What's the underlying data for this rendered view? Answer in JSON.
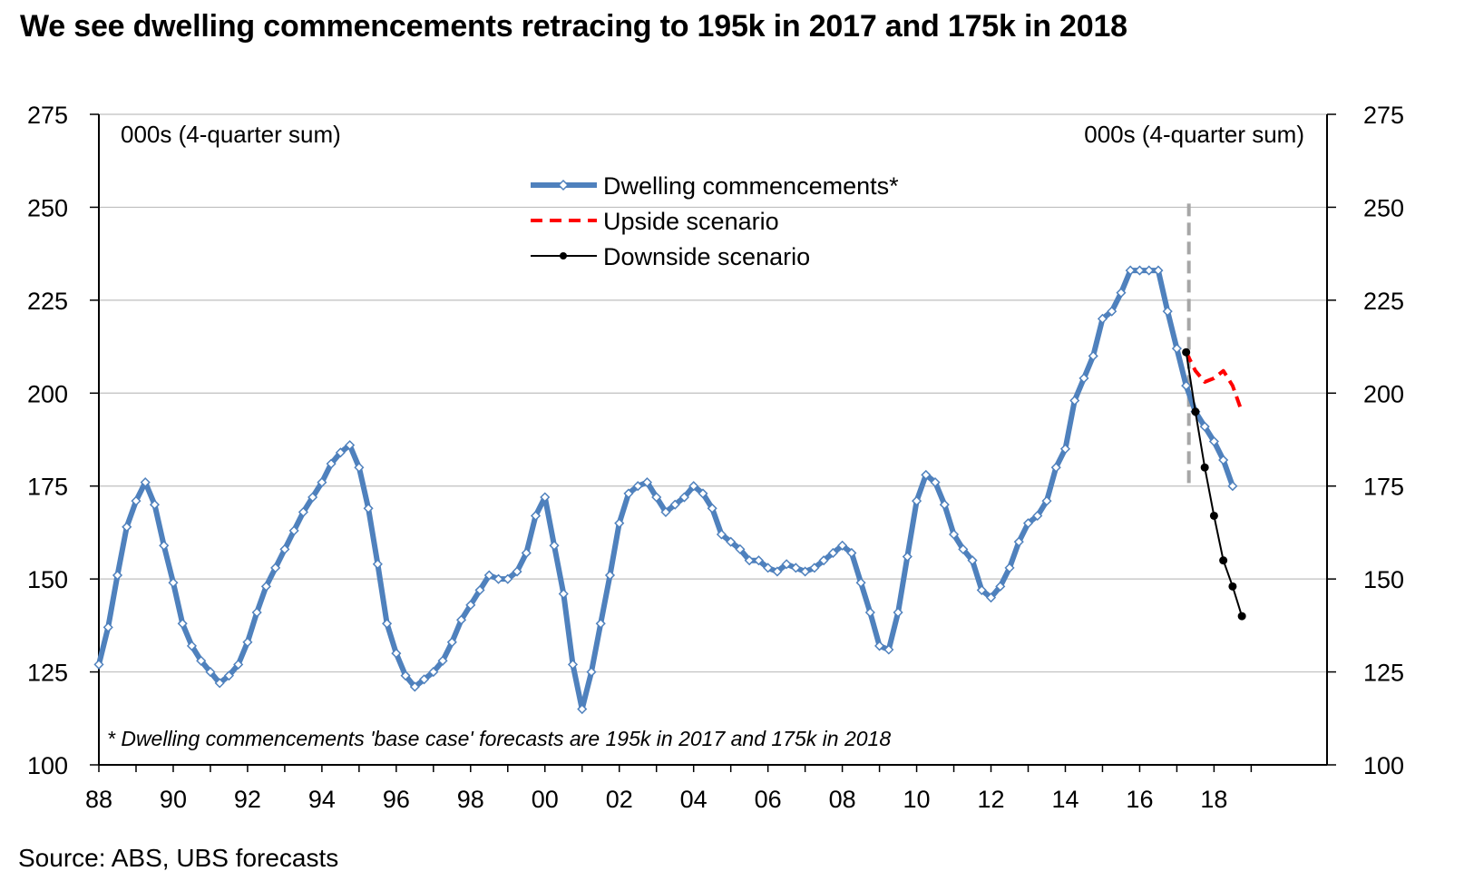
{
  "title": "We see dwelling commencements retracing to 195k in 2017 and 175k in 2018",
  "source": "Source: ABS, UBS forecasts",
  "chart_data": {
    "type": "line",
    "title": "We see dwelling commencements retracing to 195k in 2017 and 175k in 2018",
    "left_unit_label": "000s (4-quarter sum)",
    "right_unit_label": "000s (4-quarter sum)",
    "ylim": [
      100,
      275
    ],
    "yticks": [
      100,
      125,
      150,
      175,
      200,
      225,
      250,
      275
    ],
    "xlim": [
      1988,
      2019.5
    ],
    "xtick_labels": [
      "88",
      "90",
      "92",
      "94",
      "96",
      "98",
      "00",
      "02",
      "04",
      "06",
      "08",
      "10",
      "12",
      "14",
      "16",
      "18"
    ],
    "xtick_years": [
      1988,
      1990,
      1992,
      1994,
      1996,
      1998,
      2000,
      2002,
      2004,
      2006,
      2008,
      2010,
      2012,
      2014,
      2016,
      2018
    ],
    "forecast_start": 2017.25,
    "footnote": "* Dwelling commencements 'base case' forecasts are 195k in 2017 and 175k in 2018",
    "colors": {
      "base": "#4f81bd",
      "upside": "#ff0000",
      "downside": "#000000",
      "divider": "#a6a6a6",
      "grid": "#bfbfbf"
    },
    "series": [
      {
        "name": "Dwelling commencements*",
        "style": "base",
        "x_start": 1988.0,
        "x_step": 0.25,
        "values": [
          127,
          137,
          151,
          164,
          171,
          176,
          170,
          159,
          149,
          138,
          132,
          128,
          125,
          122,
          124,
          127,
          133,
          141,
          148,
          153,
          158,
          163,
          168,
          172,
          176,
          181,
          184,
          186,
          180,
          169,
          154,
          138,
          130,
          124,
          121,
          123,
          125,
          128,
          133,
          139,
          143,
          147,
          151,
          150,
          150,
          152,
          157,
          167,
          172,
          159,
          146,
          127,
          115,
          125,
          138,
          151,
          165,
          173,
          175,
          176,
          172,
          168,
          170,
          172,
          175,
          173,
          169,
          162,
          160,
          158,
          155,
          155,
          153,
          152,
          154,
          153,
          152,
          153,
          155,
          157,
          159,
          157,
          149,
          141,
          132,
          131,
          141,
          156,
          171,
          178,
          176,
          170,
          162,
          158,
          155,
          147,
          145,
          148,
          153,
          160,
          165,
          167,
          171,
          180,
          185,
          198,
          204,
          210,
          220,
          222,
          227,
          233,
          233,
          233,
          233,
          222,
          212,
          202,
          195,
          191,
          187,
          182,
          175
        ]
      },
      {
        "name": "Upside scenario",
        "style": "upside",
        "x": [
          2017.25,
          2017.5,
          2017.75,
          2018.0,
          2018.25,
          2018.5,
          2018.75
        ],
        "values": [
          211,
          206,
          203,
          204,
          206,
          202,
          195
        ]
      },
      {
        "name": "Downside scenario",
        "style": "downside",
        "x": [
          2017.25,
          2017.5,
          2017.75,
          2018.0,
          2018.25,
          2018.5,
          2018.75
        ],
        "values": [
          211,
          195,
          180,
          167,
          155,
          148,
          140
        ]
      }
    ]
  }
}
